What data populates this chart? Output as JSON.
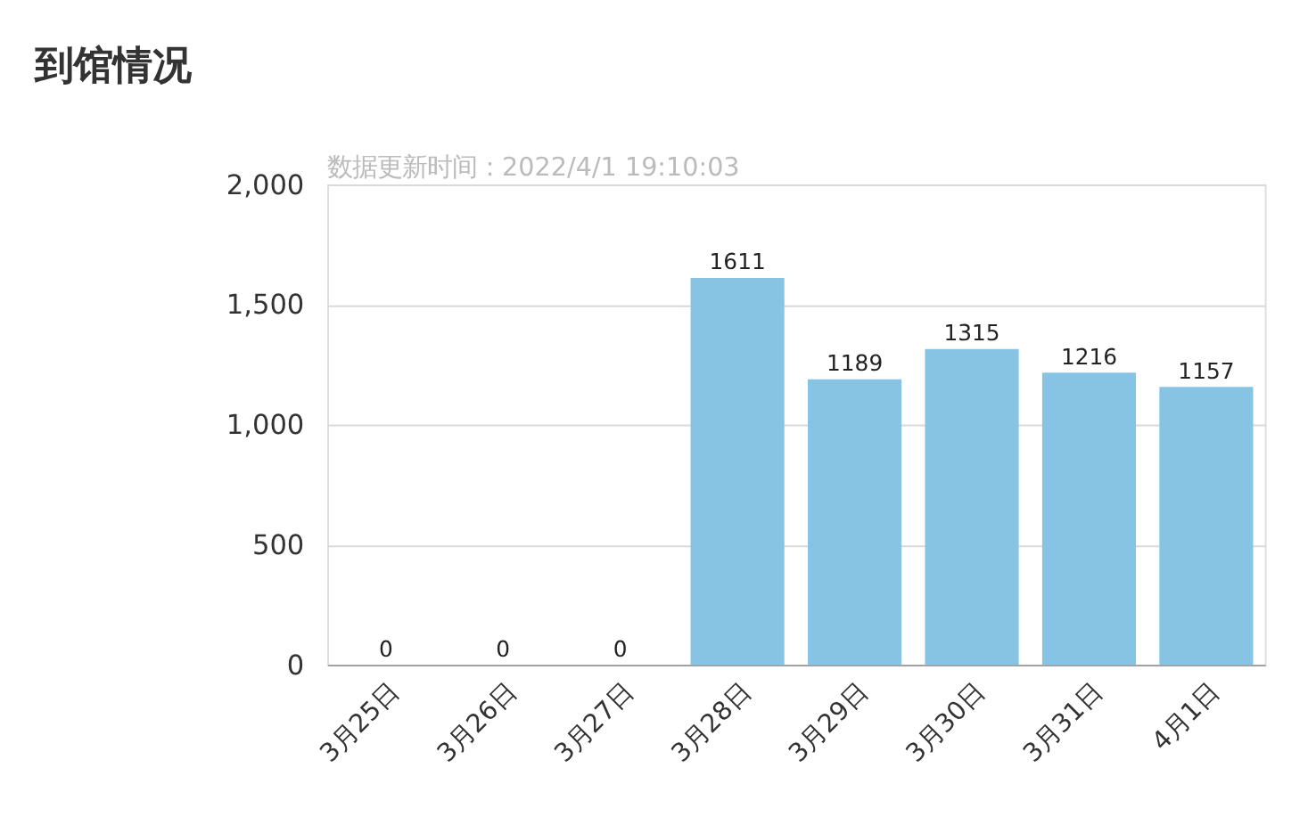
{
  "chart_data": {
    "type": "bar",
    "title": "到馆情况",
    "annotations": [
      "数据更新时间：2022/4/1 19:10:03"
    ],
    "categories": [
      "3月25日",
      "3月26日",
      "3月27日",
      "3月28日",
      "3月29日",
      "3月30日",
      "3月31日",
      "4月1日"
    ],
    "values": [
      0,
      0,
      0,
      1611,
      1189,
      1315,
      1216,
      1157
    ],
    "color": "#87c3e2",
    "ylim": [
      0,
      2000
    ],
    "yticks": [
      {
        "value": 0,
        "label": "0"
      },
      {
        "value": 500,
        "label": "500"
      },
      {
        "value": 1000,
        "label": "1,000"
      },
      {
        "value": 1500,
        "label": "1,500"
      },
      {
        "value": 2000,
        "label": "2,000"
      }
    ],
    "grid": "y",
    "data_labels": true
  }
}
